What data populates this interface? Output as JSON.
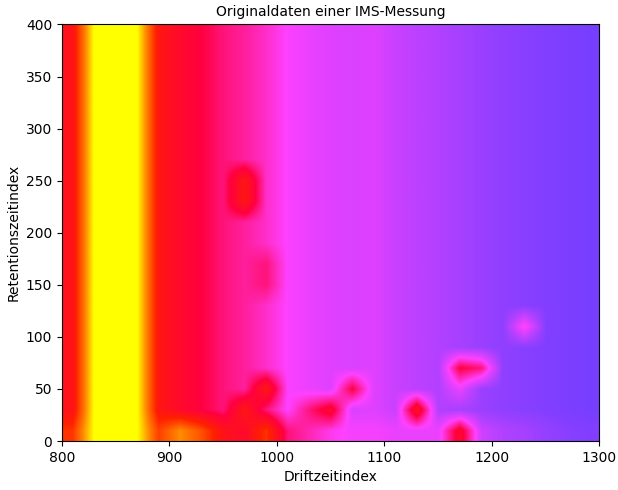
{
  "chart_data": {
    "type": "heatmap",
    "title": "Originaldaten einer IMS-Messung",
    "x_label": "Driftzeitindex",
    "y_label": "Retentionszeitindex",
    "xlim": [
      800,
      1300
    ],
    "xticks": [
      800,
      900,
      1000,
      1100,
      1200,
      1300
    ],
    "ylim": [
      0,
      400
    ],
    "yticks": [
      0,
      50,
      100,
      150,
      200,
      250,
      300,
      350,
      400
    ],
    "value_range": [
      0,
      1
    ],
    "cells": [
      [
        0.7,
        1.0,
        1.0,
        1.0,
        0.72,
        0.85,
        0.75,
        0.6,
        0.55,
        0.7,
        0.45,
        0.4,
        0.35,
        0.32,
        0.32,
        0.3,
        0.3,
        0.3,
        0.55,
        0.25,
        0.2,
        0.18,
        0.15,
        0.13,
        0.12
      ],
      [
        0.6,
        1.0,
        1.0,
        1.0,
        0.62,
        0.55,
        0.5,
        0.45,
        0.62,
        0.45,
        0.33,
        0.45,
        0.55,
        0.27,
        0.28,
        0.24,
        0.6,
        0.2,
        0.18,
        0.16,
        0.14,
        0.13,
        0.12,
        0.11,
        0.1
      ],
      [
        0.6,
        1.0,
        1.0,
        1.0,
        0.62,
        0.55,
        0.5,
        0.45,
        0.42,
        0.62,
        0.33,
        0.3,
        0.28,
        0.5,
        0.28,
        0.24,
        0.22,
        0.2,
        0.3,
        0.16,
        0.14,
        0.13,
        0.12,
        0.11,
        0.1
      ],
      [
        0.6,
        1.0,
        1.0,
        1.0,
        0.62,
        0.55,
        0.5,
        0.45,
        0.42,
        0.38,
        0.33,
        0.3,
        0.28,
        0.27,
        0.28,
        0.24,
        0.22,
        0.2,
        0.5,
        0.45,
        0.14,
        0.13,
        0.12,
        0.11,
        0.1
      ],
      [
        0.6,
        1.0,
        1.0,
        1.0,
        0.62,
        0.55,
        0.5,
        0.45,
        0.42,
        0.38,
        0.33,
        0.3,
        0.28,
        0.27,
        0.28,
        0.24,
        0.22,
        0.2,
        0.18,
        0.16,
        0.14,
        0.13,
        0.12,
        0.11,
        0.1
      ],
      [
        0.6,
        1.0,
        1.0,
        1.0,
        0.62,
        0.55,
        0.5,
        0.45,
        0.42,
        0.38,
        0.33,
        0.3,
        0.28,
        0.27,
        0.28,
        0.24,
        0.22,
        0.2,
        0.18,
        0.16,
        0.14,
        0.35,
        0.12,
        0.11,
        0.1
      ],
      [
        0.6,
        1.0,
        1.0,
        1.0,
        0.62,
        0.55,
        0.5,
        0.45,
        0.42,
        0.38,
        0.33,
        0.3,
        0.28,
        0.27,
        0.28,
        0.24,
        0.22,
        0.2,
        0.18,
        0.16,
        0.14,
        0.13,
        0.12,
        0.11,
        0.1
      ],
      [
        0.6,
        1.0,
        1.0,
        1.0,
        0.62,
        0.55,
        0.5,
        0.45,
        0.42,
        0.45,
        0.33,
        0.3,
        0.28,
        0.27,
        0.28,
        0.24,
        0.22,
        0.2,
        0.18,
        0.16,
        0.14,
        0.13,
        0.12,
        0.11,
        0.1
      ],
      [
        0.6,
        1.0,
        1.0,
        1.0,
        0.62,
        0.55,
        0.5,
        0.45,
        0.42,
        0.45,
        0.33,
        0.3,
        0.28,
        0.27,
        0.28,
        0.24,
        0.22,
        0.2,
        0.18,
        0.16,
        0.14,
        0.13,
        0.12,
        0.11,
        0.1
      ],
      [
        0.6,
        1.0,
        1.0,
        1.0,
        0.62,
        0.55,
        0.5,
        0.45,
        0.42,
        0.38,
        0.33,
        0.3,
        0.28,
        0.27,
        0.28,
        0.24,
        0.22,
        0.2,
        0.18,
        0.16,
        0.14,
        0.13,
        0.12,
        0.11,
        0.1
      ],
      [
        0.6,
        1.0,
        1.0,
        1.0,
        0.62,
        0.55,
        0.5,
        0.45,
        0.42,
        0.38,
        0.33,
        0.3,
        0.28,
        0.27,
        0.28,
        0.24,
        0.22,
        0.2,
        0.18,
        0.16,
        0.14,
        0.13,
        0.12,
        0.11,
        0.1
      ],
      [
        0.6,
        1.0,
        1.0,
        1.0,
        0.62,
        0.55,
        0.5,
        0.45,
        0.62,
        0.38,
        0.33,
        0.3,
        0.28,
        0.27,
        0.28,
        0.24,
        0.22,
        0.2,
        0.18,
        0.16,
        0.14,
        0.13,
        0.12,
        0.11,
        0.1
      ],
      [
        0.6,
        1.0,
        1.0,
        1.0,
        0.62,
        0.55,
        0.5,
        0.45,
        0.62,
        0.38,
        0.33,
        0.3,
        0.28,
        0.27,
        0.28,
        0.24,
        0.22,
        0.2,
        0.18,
        0.16,
        0.14,
        0.13,
        0.12,
        0.11,
        0.1
      ],
      [
        0.6,
        1.0,
        1.0,
        1.0,
        0.62,
        0.55,
        0.5,
        0.45,
        0.42,
        0.38,
        0.33,
        0.3,
        0.28,
        0.27,
        0.28,
        0.24,
        0.22,
        0.2,
        0.18,
        0.16,
        0.14,
        0.13,
        0.12,
        0.11,
        0.1
      ],
      [
        0.6,
        1.0,
        1.0,
        1.0,
        0.62,
        0.55,
        0.5,
        0.45,
        0.42,
        0.38,
        0.33,
        0.3,
        0.28,
        0.27,
        0.28,
        0.24,
        0.22,
        0.2,
        0.18,
        0.16,
        0.14,
        0.13,
        0.12,
        0.11,
        0.1
      ],
      [
        0.6,
        1.0,
        1.0,
        1.0,
        0.62,
        0.55,
        0.5,
        0.45,
        0.42,
        0.38,
        0.33,
        0.3,
        0.28,
        0.27,
        0.28,
        0.24,
        0.22,
        0.2,
        0.18,
        0.16,
        0.14,
        0.13,
        0.12,
        0.11,
        0.1
      ],
      [
        0.6,
        1.0,
        1.0,
        1.0,
        0.62,
        0.55,
        0.5,
        0.45,
        0.42,
        0.38,
        0.33,
        0.3,
        0.28,
        0.27,
        0.28,
        0.24,
        0.22,
        0.2,
        0.18,
        0.16,
        0.14,
        0.13,
        0.12,
        0.11,
        0.1
      ],
      [
        0.6,
        1.0,
        1.0,
        1.0,
        0.62,
        0.55,
        0.5,
        0.45,
        0.42,
        0.38,
        0.33,
        0.3,
        0.28,
        0.27,
        0.28,
        0.24,
        0.22,
        0.2,
        0.18,
        0.16,
        0.14,
        0.13,
        0.12,
        0.11,
        0.1
      ],
      [
        0.6,
        1.0,
        1.0,
        1.0,
        0.62,
        0.55,
        0.5,
        0.45,
        0.42,
        0.38,
        0.33,
        0.3,
        0.28,
        0.27,
        0.28,
        0.24,
        0.22,
        0.2,
        0.18,
        0.16,
        0.14,
        0.13,
        0.12,
        0.11,
        0.1
      ],
      [
        0.6,
        1.0,
        1.0,
        1.0,
        0.62,
        0.55,
        0.5,
        0.45,
        0.42,
        0.38,
        0.33,
        0.3,
        0.28,
        0.27,
        0.28,
        0.24,
        0.22,
        0.2,
        0.18,
        0.16,
        0.14,
        0.13,
        0.12,
        0.11,
        0.1
      ]
    ]
  }
}
